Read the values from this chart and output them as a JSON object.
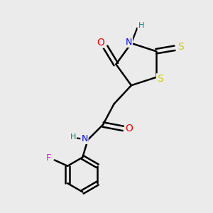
{
  "bg_color": "#ebebeb",
  "bond_color": "#000000",
  "bond_width": 1.8,
  "atom_colors": {
    "O": "#ff0000",
    "N": "#0000ff",
    "S": "#cccc00",
    "F": "#ff00ff",
    "H": "#008080",
    "C": "#000000"
  },
  "font_size": 9,
  "figsize": [
    3.0,
    3.0
  ],
  "dpi": 100
}
